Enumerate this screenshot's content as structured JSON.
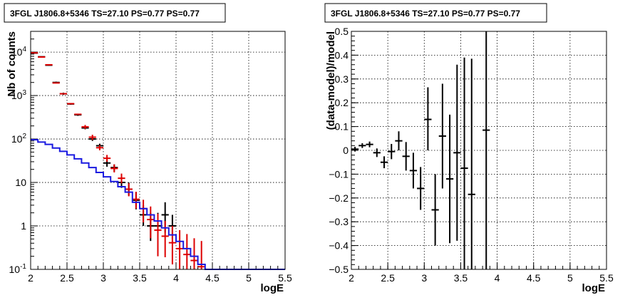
{
  "chart_data": [
    {
      "type": "scatter",
      "title": "3FGL J1806.8+5346 TS=27.10 PS=0.77 PS=0.77",
      "xlabel": "logE",
      "ylabel": "Nb of counts",
      "xlim": [
        2,
        5.5
      ],
      "ylim": [
        0.1,
        30000
      ],
      "yscale": "log",
      "grid": true,
      "xticks": [
        "2",
        "2.5",
        "3",
        "3.5",
        "4",
        "4.5",
        "5",
        "5.5"
      ],
      "yticks": [
        {
          "v": 0.1,
          "base": "10",
          "exp": "-1"
        },
        {
          "v": 1,
          "base": "1",
          "exp": ""
        },
        {
          "v": 10,
          "base": "10",
          "exp": ""
        },
        {
          "v": 100,
          "base": "10",
          "exp": "2"
        },
        {
          "v": 1000,
          "base": "10",
          "exp": "3"
        },
        {
          "v": 10000,
          "base": "10",
          "exp": "4"
        }
      ],
      "edges": [
        2.0,
        2.1,
        2.2,
        2.3,
        2.4,
        2.5,
        2.6,
        2.7,
        2.8,
        2.9,
        3.0,
        3.1,
        3.2,
        3.3,
        3.4,
        3.5,
        3.6,
        3.7,
        3.8,
        3.9,
        4.0,
        4.1,
        4.2,
        4.3,
        4.4,
        4.5,
        4.6,
        4.7,
        4.8,
        4.9,
        5.0,
        5.1,
        5.2,
        5.3,
        5.4,
        5.5
      ],
      "series": [
        {
          "role": "data",
          "color": "#000000",
          "points": [
            {
              "x": 2.05,
              "y": 9500,
              "lo": 9300,
              "hi": 9700
            },
            {
              "x": 2.15,
              "y": 7800,
              "lo": 7600,
              "hi": 8000
            },
            {
              "x": 2.25,
              "y": 5000,
              "lo": 4850,
              "hi": 5150
            },
            {
              "x": 2.35,
              "y": 2000,
              "lo": 1910,
              "hi": 2090
            },
            {
              "x": 2.45,
              "y": 1100,
              "lo": 1035,
              "hi": 1165
            },
            {
              "x": 2.55,
              "y": 640,
              "lo": 615,
              "hi": 665
            },
            {
              "x": 2.65,
              "y": 360,
              "lo": 341,
              "hi": 379
            },
            {
              "x": 2.75,
              "y": 180,
              "lo": 167,
              "hi": 193
            },
            {
              "x": 2.85,
              "y": 100,
              "lo": 90,
              "hi": 110
            },
            {
              "x": 2.95,
              "y": 70,
              "lo": 62,
              "hi": 78
            },
            {
              "x": 3.05,
              "y": 28,
              "lo": 23,
              "hi": 33
            },
            {
              "x": 3.15,
              "y": 22,
              "lo": 18,
              "hi": 26
            },
            {
              "x": 3.25,
              "y": 10,
              "lo": 7.5,
              "hi": 13
            },
            {
              "x": 3.35,
              "y": 7,
              "lo": 5,
              "hi": 10
            },
            {
              "x": 3.45,
              "y": 3.9,
              "lo": 2.4,
              "hi": 6
            },
            {
              "x": 3.55,
              "y": 1.8,
              "lo": 1.0,
              "hi": 3.0
            },
            {
              "x": 3.65,
              "y": 1.0,
              "lo": 0.45,
              "hi": 2.0
            },
            {
              "x": 3.75,
              "y": 1.0,
              "lo": 0.45,
              "hi": 2.0
            },
            {
              "x": 3.85,
              "y": 1.8,
              "lo": 0.7,
              "hi": 3.5
            },
            {
              "x": 3.95,
              "y": 1.0,
              "lo": 0.5,
              "hi": 1.8
            }
          ]
        },
        {
          "role": "model",
          "color": "#dd0000",
          "points": [
            {
              "x": 2.05,
              "y": 9600,
              "lo": 9600,
              "hi": 9600
            },
            {
              "x": 2.15,
              "y": 7700,
              "lo": 7700,
              "hi": 7700
            },
            {
              "x": 2.25,
              "y": 5100,
              "lo": 5100,
              "hi": 5100
            },
            {
              "x": 2.35,
              "y": 1950,
              "lo": 1950,
              "hi": 1950
            },
            {
              "x": 2.45,
              "y": 1100,
              "lo": 1100,
              "hi": 1100
            },
            {
              "x": 2.55,
              "y": 650,
              "lo": 650,
              "hi": 650
            },
            {
              "x": 2.65,
              "y": 370,
              "lo": 370,
              "hi": 370
            },
            {
              "x": 2.75,
              "y": 190,
              "lo": 170,
              "hi": 210
            },
            {
              "x": 2.85,
              "y": 110,
              "lo": 95,
              "hi": 125
            },
            {
              "x": 2.95,
              "y": 63,
              "lo": 55,
              "hi": 72
            },
            {
              "x": 3.05,
              "y": 36,
              "lo": 30,
              "hi": 43
            },
            {
              "x": 3.15,
              "y": 21,
              "lo": 17,
              "hi": 26
            },
            {
              "x": 3.25,
              "y": 12.5,
              "lo": 9.5,
              "hi": 16
            },
            {
              "x": 3.35,
              "y": 7,
              "lo": 4.8,
              "hi": 9.6
            },
            {
              "x": 3.45,
              "y": 4.1,
              "lo": 2.5,
              "hi": 6.1
            },
            {
              "x": 3.55,
              "y": 2.5,
              "lo": 1.2,
              "hi": 4.0
            },
            {
              "x": 3.65,
              "y": 1.4,
              "lo": 0.52,
              "hi": 2.8
            },
            {
              "x": 3.75,
              "y": 0.8,
              "lo": 0.2,
              "hi": 1.9
            },
            {
              "x": 3.85,
              "y": 0.58,
              "lo": 0.19,
              "hi": 1.3
            },
            {
              "x": 3.95,
              "y": 0.41,
              "lo": 0.13,
              "hi": 1.0
            },
            {
              "x": 4.05,
              "y": 0.3,
              "lo": 0.1,
              "hi": 0.8
            },
            {
              "x": 4.15,
              "y": 0.22,
              "lo": 0.1,
              "hi": 0.65
            },
            {
              "x": 4.25,
              "y": 0.16,
              "lo": 0.1,
              "hi": 0.52
            },
            {
              "x": 4.35,
              "y": 0.115,
              "lo": 0.1,
              "hi": 0.45
            }
          ]
        },
        {
          "role": "component",
          "color": "#1a1ae0",
          "step_values": [
            96,
            85,
            75,
            62,
            52,
            43,
            35,
            28,
            22,
            17,
            13.5,
            10.5,
            8,
            6,
            3.5,
            2.5,
            1.8,
            1.3,
            0.9,
            0.62,
            0.44,
            0.3,
            0.2,
            0.13,
            0.1,
            0.1,
            0.1,
            0.1,
            0.1,
            0.1,
            0.1,
            0.1,
            0.1,
            0.1,
            0.1
          ]
        }
      ]
    },
    {
      "type": "scatter",
      "title": "3FGL J1806.8+5346 TS=27.10 PS=0.77 PS=0.77",
      "xlabel": "logE",
      "ylabel": "(data-model)/model",
      "xlim": [
        2,
        5.5
      ],
      "ylim": [
        -0.5,
        0.5
      ],
      "grid": true,
      "xticks": [
        "2",
        "2.5",
        "3",
        "3.5",
        "4",
        "4.5",
        "5",
        "5.5"
      ],
      "yticks": [
        "−0.5",
        "−0.4",
        "−0.3",
        "−0.2",
        "−0.1",
        "0",
        "0.1",
        "0.2",
        "0.3",
        "0.4",
        "0.5"
      ],
      "series": [
        {
          "role": "residual",
          "color": "#000000",
          "points": [
            {
              "x": 2.05,
              "y": 0.005,
              "lo": -0.005,
              "hi": 0.015
            },
            {
              "x": 2.15,
              "y": 0.02,
              "lo": 0.01,
              "hi": 0.03
            },
            {
              "x": 2.25,
              "y": 0.025,
              "lo": 0.013,
              "hi": 0.037
            },
            {
              "x": 2.35,
              "y": -0.01,
              "lo": -0.028,
              "hi": 0.008
            },
            {
              "x": 2.45,
              "y": -0.05,
              "lo": -0.075,
              "hi": -0.025
            },
            {
              "x": 2.55,
              "y": -0.005,
              "lo": -0.037,
              "hi": 0.027
            },
            {
              "x": 2.65,
              "y": 0.04,
              "lo": 0.0,
              "hi": 0.08
            },
            {
              "x": 2.75,
              "y": -0.025,
              "lo": -0.085,
              "hi": 0.035
            },
            {
              "x": 2.85,
              "y": -0.085,
              "lo": -0.16,
              "hi": -0.01
            },
            {
              "x": 2.95,
              "y": -0.16,
              "lo": -0.25,
              "hi": -0.07
            },
            {
              "x": 3.05,
              "y": 0.13,
              "lo": 0.0,
              "hi": 0.265
            },
            {
              "x": 3.15,
              "y": -0.25,
              "lo": -0.4,
              "hi": -0.1
            },
            {
              "x": 3.25,
              "y": 0.06,
              "lo": -0.16,
              "hi": 0.28
            },
            {
              "x": 3.35,
              "y": -0.12,
              "lo": -0.39,
              "hi": 0.15
            },
            {
              "x": 3.45,
              "y": -0.01,
              "lo": -0.38,
              "hi": 0.36
            },
            {
              "x": 3.55,
              "y": -0.075,
              "lo": -0.5,
              "hi": 0.39
            },
            {
              "x": 3.65,
              "y": -0.185,
              "lo": -0.5,
              "hi": 0.385
            },
            {
              "x": 3.85,
              "y": 0.085,
              "lo": -0.5,
              "hi": 0.5
            }
          ]
        }
      ]
    }
  ]
}
